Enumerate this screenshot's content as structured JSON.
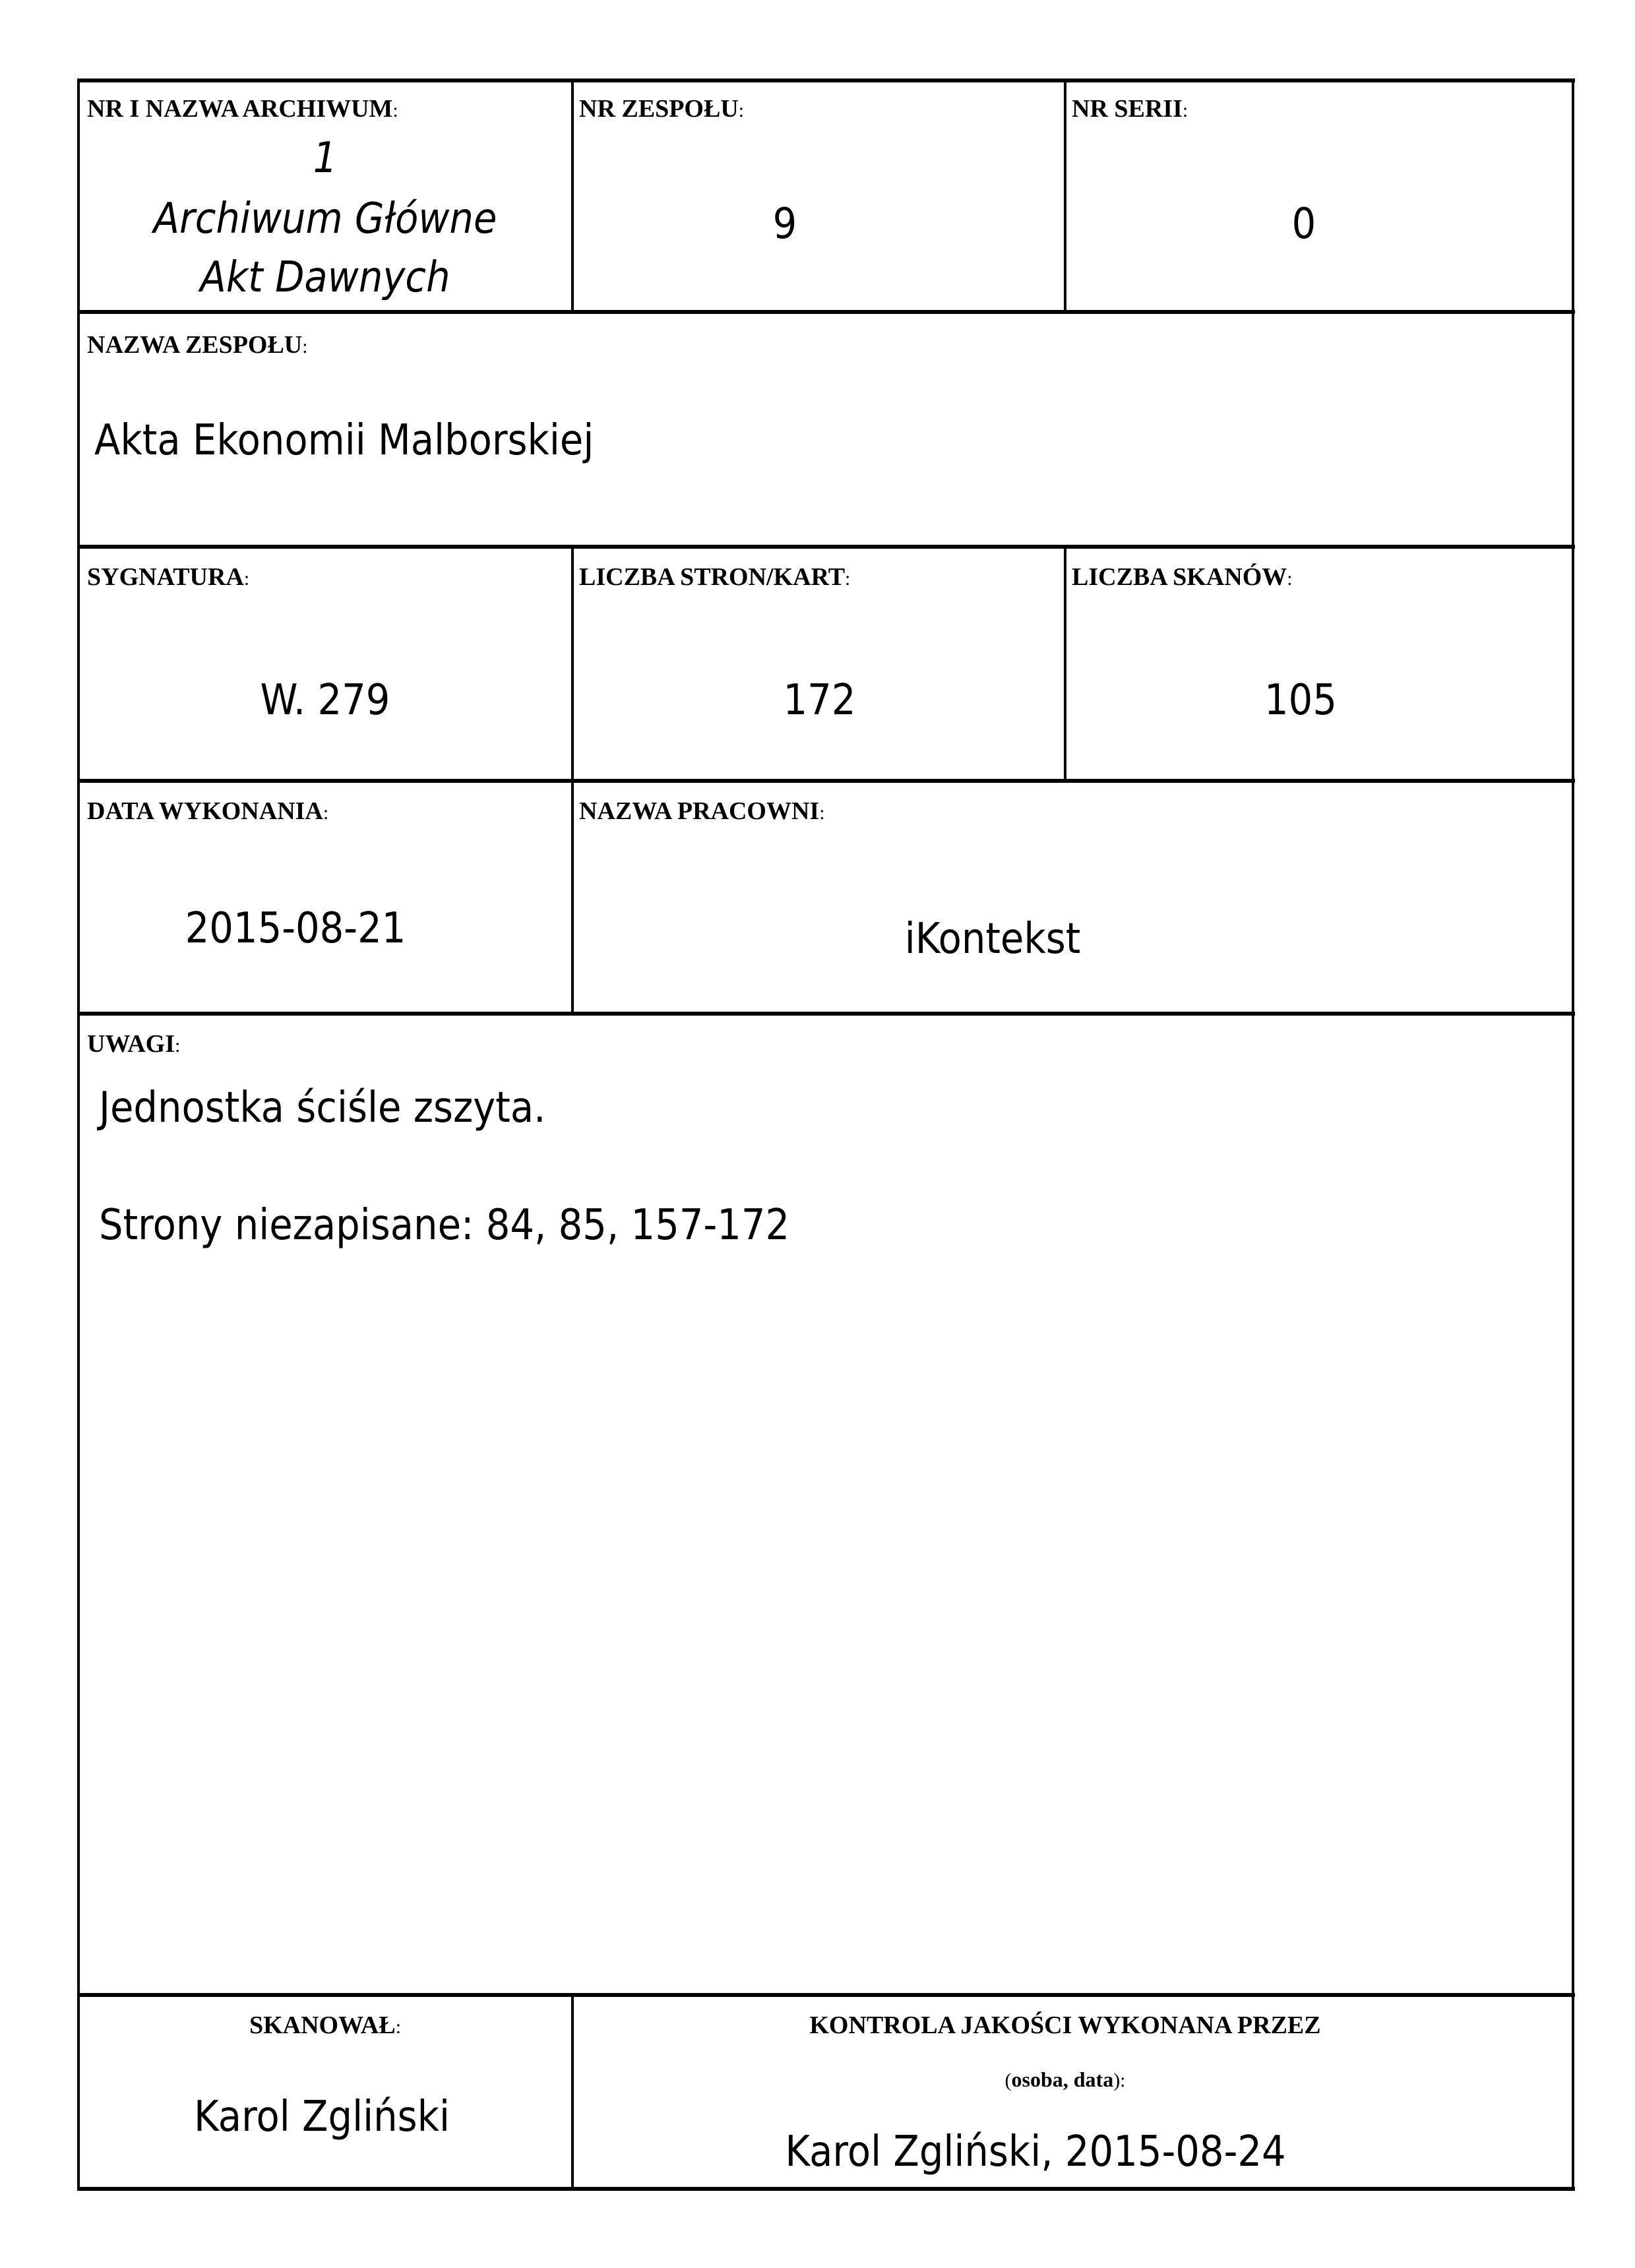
{
  "archive": {
    "label": "NR I NAZWA ARCHIWUM",
    "number": "1",
    "name_line1": "Archiwum Główne",
    "name_line2": "Akt Dawnych"
  },
  "fonds_number": {
    "label": "NR ZESPOŁU",
    "value": "9"
  },
  "series_number": {
    "label": "NR SERII",
    "value": "0"
  },
  "fonds_name": {
    "label": "NAZWA ZESPOŁU",
    "value": "Akta Ekonomii Malborskiej"
  },
  "signature": {
    "label": "SYGNATURA",
    "value": "W. 279"
  },
  "pages": {
    "label": "LICZBA STRON/KART",
    "value": "172"
  },
  "scans": {
    "label": "LICZBA SKANÓW",
    "value": "105"
  },
  "date": {
    "label": "DATA WYKONANIA",
    "value": "2015-08-21"
  },
  "workshop": {
    "label": "NAZWA PRACOWNI",
    "value": "iKontekst"
  },
  "remarks": {
    "label": "UWAGI",
    "line1": "Jednostka ściśle zszyta.",
    "line2": "Strony niezapisane: 84, 85, 157-172"
  },
  "scanned_by": {
    "label": "SKANOWAŁ",
    "value": "Karol Zgliński"
  },
  "quality_control": {
    "label": "KONTROLA JAKOŚCI WYKONANA PRZEZ",
    "sublabel": "osoba, data",
    "value": "Karol Zgliński, 2015-08-24"
  }
}
